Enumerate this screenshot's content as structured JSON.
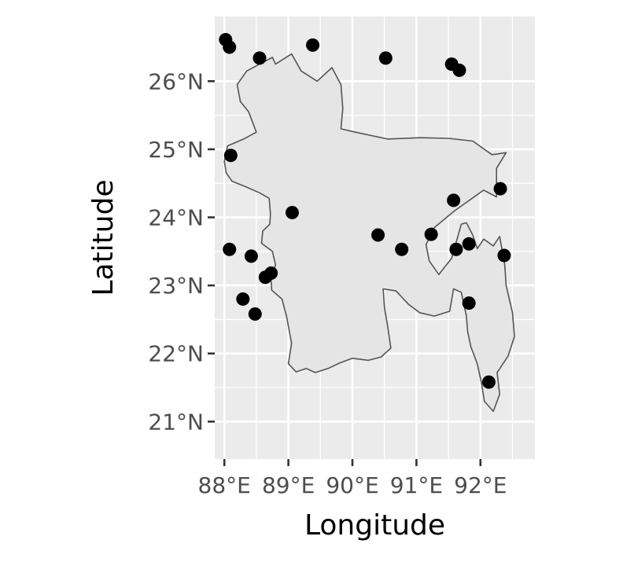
{
  "chart_data": {
    "type": "scatter",
    "title": "",
    "xlabel": "Longitude",
    "ylabel": "Latitude",
    "xlim": [
      87.85,
      92.85
    ],
    "ylim": [
      20.45,
      26.95
    ],
    "grid": true,
    "legend": "none",
    "x_ticks": [
      {
        "value": 88,
        "label": "88°E"
      },
      {
        "value": 89,
        "label": "89°E"
      },
      {
        "value": 90,
        "label": "90°E"
      },
      {
        "value": 91,
        "label": "91°E"
      },
      {
        "value": 92,
        "label": "92°E"
      }
    ],
    "y_ticks": [
      {
        "value": 21,
        "label": "21°N"
      },
      {
        "value": 22,
        "label": "22°N"
      },
      {
        "value": 23,
        "label": "23°N"
      },
      {
        "value": 24,
        "label": "24°N"
      },
      {
        "value": 25,
        "label": "25°N"
      },
      {
        "value": 26,
        "label": "26°N"
      }
    ],
    "points": [
      {
        "x": 88.02,
        "y": 26.61
      },
      {
        "x": 88.08,
        "y": 26.5
      },
      {
        "x": 88.55,
        "y": 26.34
      },
      {
        "x": 89.38,
        "y": 26.53
      },
      {
        "x": 90.52,
        "y": 26.34
      },
      {
        "x": 91.55,
        "y": 26.25
      },
      {
        "x": 91.67,
        "y": 26.16
      },
      {
        "x": 88.1,
        "y": 24.91
      },
      {
        "x": 89.06,
        "y": 24.07
      },
      {
        "x": 90.4,
        "y": 23.74
      },
      {
        "x": 90.77,
        "y": 23.53
      },
      {
        "x": 91.23,
        "y": 23.75
      },
      {
        "x": 91.58,
        "y": 24.25
      },
      {
        "x": 92.31,
        "y": 24.42
      },
      {
        "x": 91.62,
        "y": 23.53
      },
      {
        "x": 91.82,
        "y": 23.61
      },
      {
        "x": 92.37,
        "y": 23.44
      },
      {
        "x": 91.82,
        "y": 22.74
      },
      {
        "x": 92.13,
        "y": 21.58
      },
      {
        "x": 88.08,
        "y": 23.53
      },
      {
        "x": 88.42,
        "y": 23.43
      },
      {
        "x": 88.73,
        "y": 23.18
      },
      {
        "x": 88.64,
        "y": 23.12
      },
      {
        "x": 88.29,
        "y": 22.8
      },
      {
        "x": 88.48,
        "y": 22.58
      }
    ],
    "colors": {
      "panel": "#ebebeb",
      "grid": "#ffffff",
      "land": "#e5e5e5",
      "border": "#555555",
      "point": "#000000",
      "tick": "#333333"
    },
    "map": {
      "name": "Bangladesh",
      "outline": [
        [
          88.03,
          24.65
        ],
        [
          88.12,
          24.53
        ],
        [
          88.33,
          24.45
        ],
        [
          88.55,
          24.36
        ],
        [
          88.7,
          24.28
        ],
        [
          88.72,
          24.05
        ],
        [
          88.71,
          23.9
        ],
        [
          88.6,
          23.8
        ],
        [
          88.58,
          23.62
        ],
        [
          88.75,
          23.5
        ],
        [
          88.8,
          23.3
        ],
        [
          88.73,
          23.1
        ],
        [
          88.74,
          22.93
        ],
        [
          88.9,
          22.8
        ],
        [
          88.97,
          22.55
        ],
        [
          89.05,
          22.15
        ],
        [
          89.0,
          21.85
        ],
        [
          89.12,
          21.73
        ],
        [
          89.28,
          21.78
        ],
        [
          89.42,
          21.72
        ],
        [
          89.62,
          21.78
        ],
        [
          89.8,
          21.86
        ],
        [
          90.0,
          21.93
        ],
        [
          90.25,
          21.9
        ],
        [
          90.45,
          21.95
        ],
        [
          90.6,
          22.08
        ],
        [
          90.55,
          22.4
        ],
        [
          90.5,
          22.68
        ],
        [
          90.48,
          22.95
        ],
        [
          90.68,
          22.92
        ],
        [
          90.88,
          22.72
        ],
        [
          91.05,
          22.6
        ],
        [
          91.28,
          22.55
        ],
        [
          91.52,
          22.62
        ],
        [
          91.58,
          22.95
        ],
        [
          91.7,
          22.9
        ],
        [
          91.78,
          22.55
        ],
        [
          91.8,
          22.32
        ],
        [
          91.85,
          22.1
        ],
        [
          91.95,
          21.85
        ],
        [
          92.02,
          21.55
        ],
        [
          92.06,
          21.3
        ],
        [
          92.2,
          21.15
        ],
        [
          92.3,
          21.4
        ],
        [
          92.26,
          21.72
        ],
        [
          92.43,
          21.96
        ],
        [
          92.53,
          22.25
        ],
        [
          92.5,
          22.6
        ],
        [
          92.4,
          23.0
        ],
        [
          92.38,
          23.3
        ],
        [
          92.3,
          23.72
        ],
        [
          92.2,
          23.58
        ],
        [
          92.05,
          23.68
        ],
        [
          91.95,
          23.54
        ],
        [
          91.88,
          23.74
        ],
        [
          91.78,
          23.92
        ],
        [
          91.7,
          23.9
        ],
        [
          91.55,
          23.4
        ],
        [
          91.45,
          23.28
        ],
        [
          91.35,
          23.16
        ],
        [
          91.2,
          23.36
        ],
        [
          91.15,
          23.6
        ],
        [
          91.28,
          23.85
        ],
        [
          91.6,
          24.1
        ],
        [
          92.05,
          24.4
        ],
        [
          92.25,
          24.3
        ],
        [
          92.25,
          24.72
        ],
        [
          92.4,
          24.95
        ],
        [
          92.18,
          24.92
        ],
        [
          91.88,
          25.12
        ],
        [
          91.5,
          25.16
        ],
        [
          91.05,
          25.17
        ],
        [
          90.55,
          25.15
        ],
        [
          90.05,
          25.25
        ],
        [
          89.82,
          25.3
        ],
        [
          89.85,
          25.6
        ],
        [
          89.82,
          25.95
        ],
        [
          89.68,
          26.2
        ],
        [
          89.45,
          26.0
        ],
        [
          89.2,
          26.15
        ],
        [
          89.05,
          26.4
        ],
        [
          88.8,
          26.25
        ],
        [
          88.75,
          26.35
        ],
        [
          88.55,
          26.25
        ],
        [
          88.35,
          26.15
        ],
        [
          88.2,
          25.95
        ],
        [
          88.25,
          25.7
        ],
        [
          88.38,
          25.55
        ],
        [
          88.5,
          25.25
        ],
        [
          88.3,
          25.15
        ],
        [
          88.05,
          25.05
        ],
        [
          88.0,
          24.82
        ]
      ]
    }
  }
}
